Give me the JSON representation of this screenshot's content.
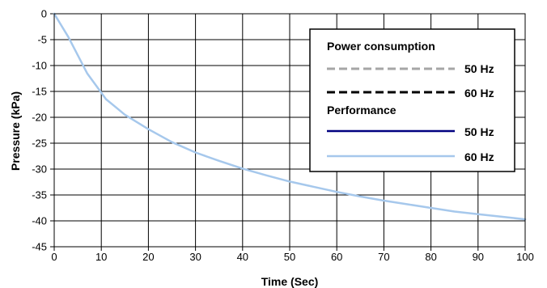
{
  "chart_data": {
    "type": "line",
    "title": "",
    "xlabel": "Time (Sec)",
    "ylabel": "Pressure (kPa)",
    "xlim": [
      0,
      100
    ],
    "ylim": [
      -45,
      0
    ],
    "x_ticks": [
      0,
      10,
      20,
      30,
      40,
      50,
      60,
      70,
      80,
      90,
      100
    ],
    "y_ticks": [
      0,
      -5,
      -10,
      -15,
      -20,
      -25,
      -30,
      -35,
      -40,
      -45
    ],
    "grid": true,
    "legend_position": "top-right",
    "legend_groups": [
      {
        "heading": "Power consumption",
        "entries": [
          {
            "label": "50 Hz",
            "color": "#a6a6a6",
            "style": "dashed"
          },
          {
            "label": "60 Hz",
            "color": "#000000",
            "style": "dashed"
          }
        ]
      },
      {
        "heading": "Performance",
        "entries": [
          {
            "label": "50 Hz",
            "color": "#000080",
            "style": "solid"
          },
          {
            "label": "60 Hz",
            "color": "#a6c8ec",
            "style": "solid"
          }
        ]
      }
    ],
    "series": [
      {
        "name": "Performance 60 Hz",
        "color": "#a6c8ec",
        "x": [
          0,
          3,
          5,
          7,
          9,
          11,
          13,
          15,
          20,
          25,
          30,
          35,
          40,
          45,
          50,
          55,
          60,
          65,
          70,
          75,
          80,
          85,
          90,
          95,
          100
        ],
        "y": [
          0,
          -4.5,
          -8,
          -11.5,
          -14,
          -16.5,
          -18,
          -19.5,
          -22.3,
          -24.8,
          -26.8,
          -28.4,
          -29.9,
          -31.2,
          -32.4,
          -33.4,
          -34.4,
          -35.3,
          -36.1,
          -36.8,
          -37.5,
          -38.2,
          -38.7,
          -39.2,
          -39.7
        ]
      }
    ]
  }
}
